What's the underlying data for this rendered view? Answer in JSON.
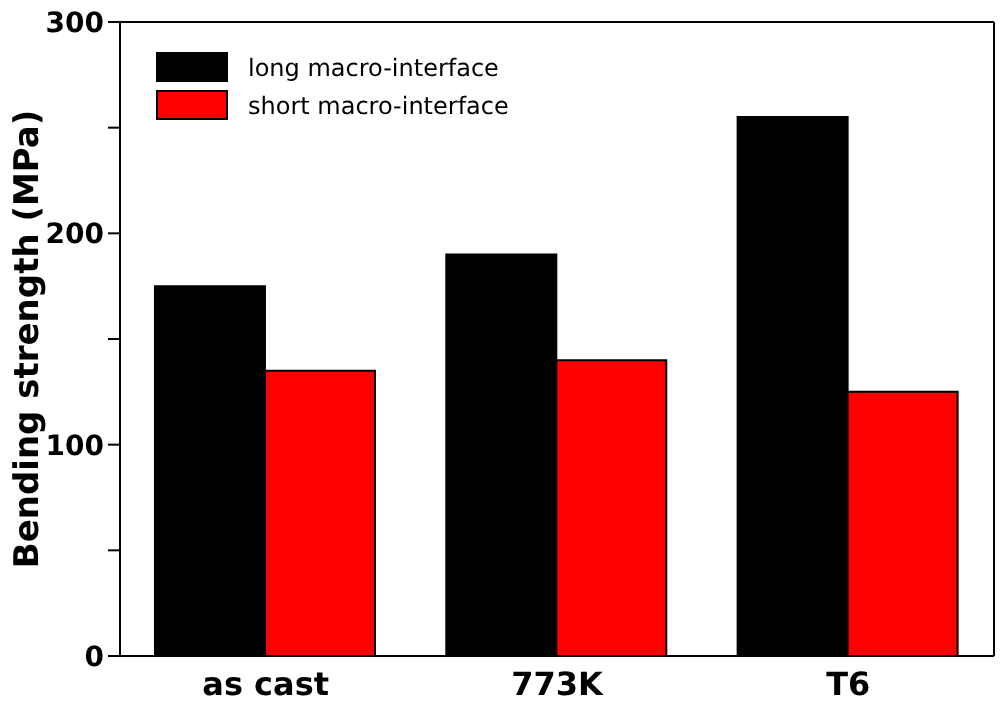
{
  "chart_data": {
    "type": "bar",
    "ylabel": "Bending strength (MPa)",
    "categories": [
      "as cast",
      "773K",
      "T6"
    ],
    "series": [
      {
        "name": "long macro-interface",
        "color": "#000000",
        "values": [
          175,
          190,
          255
        ]
      },
      {
        "name": "short macro-interface",
        "color": "#ff0000",
        "values": [
          135,
          140,
          125
        ]
      }
    ],
    "ylim": [
      0,
      300
    ],
    "yticks": [
      0,
      {
        "value": 50,
        "label": null
      },
      100,
      {
        "value": 150,
        "label": null
      },
      200,
      {
        "value": 250,
        "label": null
      },
      300
    ],
    "grid": false,
    "legend": "top left"
  }
}
